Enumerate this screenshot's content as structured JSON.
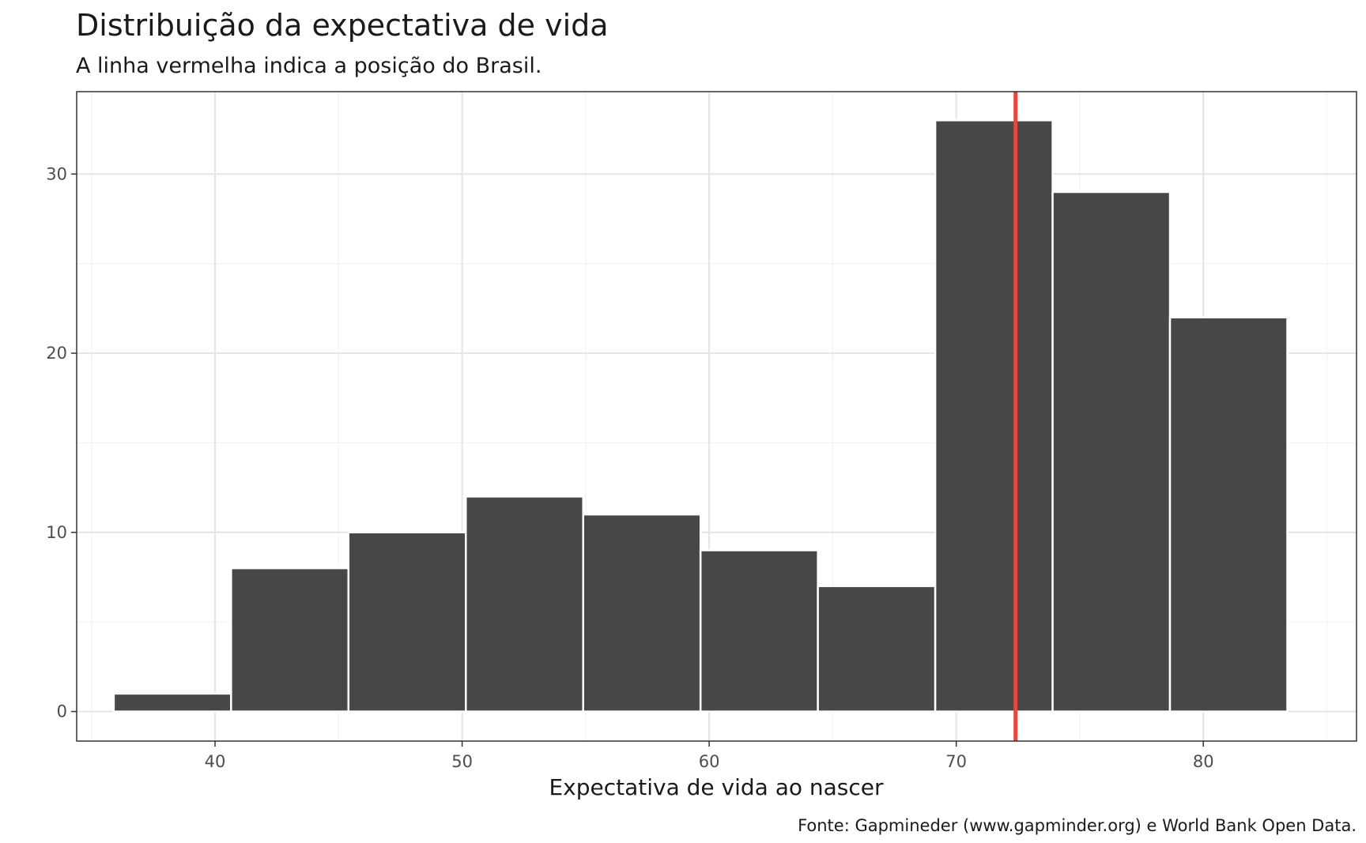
{
  "chart_data": {
    "type": "bar",
    "title": "Distribuição da expectativa de vida",
    "subtitle": "A linha vermelha indica a posição do Brasil.",
    "xlabel": "Expectativa de vida ao nascer",
    "ylabel": "",
    "caption": "Fonte: Gapmineder (www.gapminder.org) e World Bank Open Data.",
    "xlim": [
      34.4,
      86.2
    ],
    "ylim": [
      -1.65,
      34.6
    ],
    "x_ticks": [
      40,
      50,
      60,
      70,
      80
    ],
    "y_ticks": [
      0,
      10,
      20,
      30
    ],
    "x_minor_ticks": [
      35,
      45,
      55,
      65,
      75,
      85
    ],
    "y_minor_ticks": [
      5,
      15,
      25
    ],
    "bins": [
      {
        "start": 35.9,
        "end": 40.65,
        "count": 1
      },
      {
        "start": 40.65,
        "end": 45.4,
        "count": 8
      },
      {
        "start": 45.4,
        "end": 50.15,
        "count": 10
      },
      {
        "start": 50.15,
        "end": 54.9,
        "count": 12
      },
      {
        "start": 54.9,
        "end": 59.65,
        "count": 11
      },
      {
        "start": 59.65,
        "end": 64.4,
        "count": 9
      },
      {
        "start": 64.4,
        "end": 69.15,
        "count": 7
      },
      {
        "start": 69.15,
        "end": 73.9,
        "count": 33
      },
      {
        "start": 73.9,
        "end": 78.65,
        "count": 29
      },
      {
        "start": 78.65,
        "end": 83.4,
        "count": 22
      }
    ],
    "reference_line": {
      "x": 72.4
    },
    "grid": true,
    "colors": {
      "bar": "#474747",
      "bar_outline": "#ffffff",
      "reference": "#e8453c",
      "grid_major": "#e6e6e6",
      "grid_minor": "#f2f2f2",
      "panel_border": "#333333"
    }
  }
}
